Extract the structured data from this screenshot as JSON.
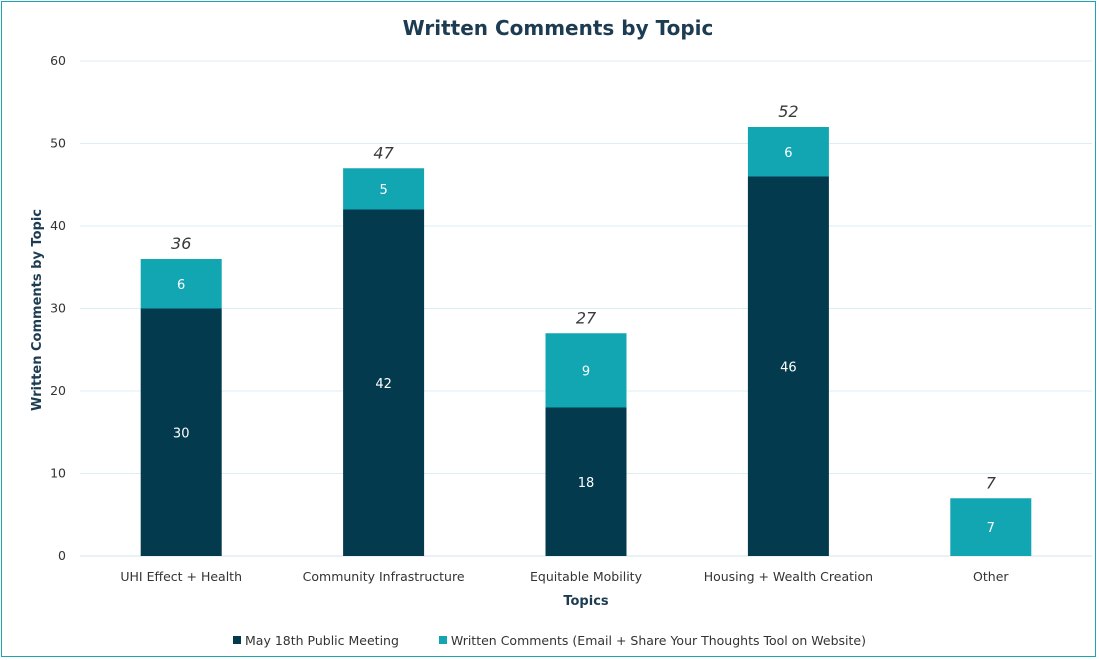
{
  "chart_data": {
    "type": "bar",
    "stacked": true,
    "title": "Written Comments by Topic",
    "xlabel": "Topics",
    "ylabel": "Written Comments by Topic",
    "ylim": [
      0,
      60
    ],
    "yticks": [
      "0",
      "10",
      "20",
      "30",
      "40",
      "50",
      "60"
    ],
    "grid": true,
    "legend_position": "bottom",
    "categories": [
      "UHI Effect + Health",
      "Community Infrastructure",
      "Equitable Mobility",
      "Housing + Wealth Creation",
      "Other"
    ],
    "series": [
      {
        "name": "May 18th Public Meeting",
        "values": [
          30,
          42,
          18,
          46,
          0
        ],
        "color": "#033a4d"
      },
      {
        "name": "Written Comments (Email + Share Your Thoughts Tool on Website)",
        "values": [
          6,
          5,
          9,
          6,
          7
        ],
        "color": "#12a6b3"
      }
    ],
    "totals": [
      36,
      47,
      27,
      52,
      7
    ]
  }
}
